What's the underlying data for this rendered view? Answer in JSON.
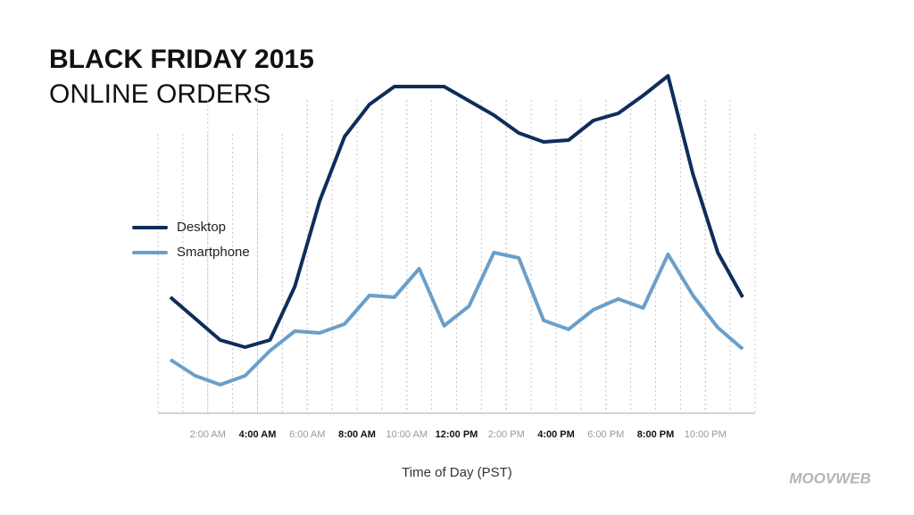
{
  "chart_data": {
    "type": "line",
    "title": "BLACK FRIDAY 2015",
    "subtitle": "ONLINE ORDERS",
    "x_label": "Time of Day (PST)",
    "watermark": "MOOVWEB",
    "x": [
      0.5,
      1.5,
      2.5,
      3.5,
      4.5,
      5.5,
      6.5,
      7.5,
      8.5,
      9.5,
      10.5,
      11.5,
      12.5,
      13.5,
      14.5,
      15.5,
      16.5,
      17.5,
      18.5,
      19.5,
      20.5,
      21.5,
      22.5,
      23.5
    ],
    "series": [
      {
        "name": "Desktop",
        "color": "#0f2d5c",
        "values": [
          32.5,
          26.5,
          20.5,
          18.5,
          20.5,
          35.5,
          59.5,
          77.5,
          86.5,
          91.5,
          91.5,
          91.5,
          87.5,
          83.5,
          78.5,
          76,
          76.5,
          82,
          84,
          89,
          94.5,
          67,
          45,
          32.5
        ]
      },
      {
        "name": "Smartphone",
        "color": "#6a9fcb",
        "values": [
          15,
          10.5,
          8,
          10.5,
          17.5,
          23,
          22.5,
          25,
          33,
          32.5,
          40.5,
          24.5,
          30,
          45,
          43.5,
          26,
          23.5,
          29,
          32,
          29.5,
          44.5,
          33,
          24,
          18
        ]
      }
    ],
    "xlim": [
      0,
      24
    ],
    "xticks": [
      {
        "value": 2,
        "label": "2:00 AM"
      },
      {
        "value": 4,
        "label": "4:00 AM"
      },
      {
        "value": 6,
        "label": "6:00 AM"
      },
      {
        "value": 8,
        "label": "8:00 AM"
      },
      {
        "value": 10,
        "label": "10:00 AM"
      },
      {
        "value": 12,
        "label": "12:00 PM"
      },
      {
        "value": 14,
        "label": "2:00 PM"
      },
      {
        "value": 16,
        "label": "4:00 PM"
      },
      {
        "value": 18,
        "label": "6:00 PM"
      },
      {
        "value": 20,
        "label": "8:00 PM"
      },
      {
        "value": 22,
        "label": "10:00 PM"
      }
    ],
    "ylim": [
      0,
      100
    ],
    "grid": true
  }
}
